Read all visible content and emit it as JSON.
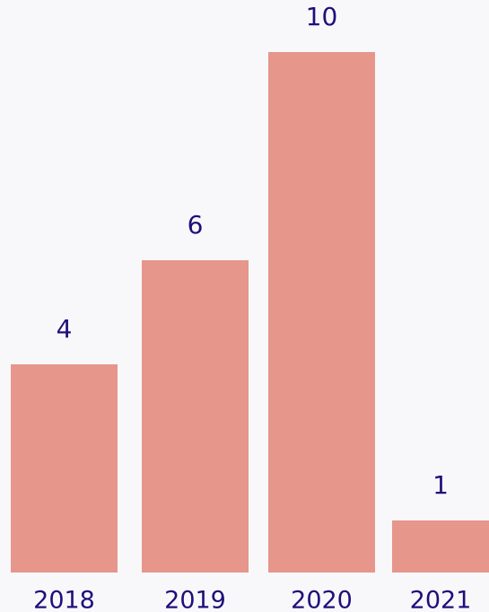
{
  "chart_data": {
    "type": "bar",
    "categories": [
      "2018",
      "2019",
      "2020",
      "2021"
    ],
    "values": [
      4,
      6,
      10,
      1
    ],
    "data_labels": [
      "4",
      "6",
      "10",
      "1"
    ],
    "ylim": [
      0,
      10
    ],
    "grid": false,
    "legend": "none",
    "colors": {
      "bar": "#e6968b",
      "text": "#1f0f7a",
      "background": "#f8f8fb"
    }
  }
}
